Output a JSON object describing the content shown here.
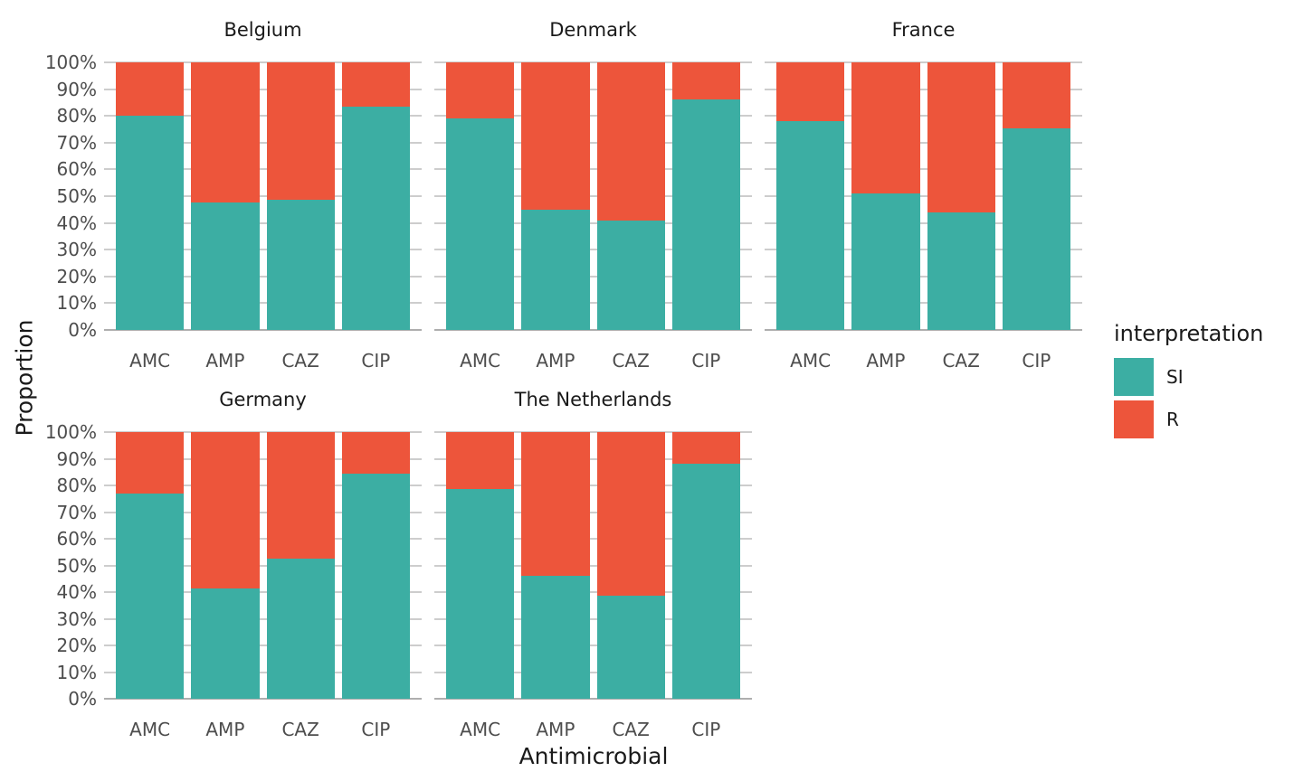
{
  "chart_data": {
    "type": "bar",
    "stacking": "percent",
    "title": "",
    "xlabel": "Antimicrobial",
    "ylabel": "Proportion",
    "ylim": [
      0,
      100
    ],
    "y_ticks": [
      "100%",
      "90%",
      "80%",
      "70%",
      "60%",
      "50%",
      "40%",
      "30%",
      "20%",
      "10%",
      "0%"
    ],
    "grid": "horizontal-only",
    "categories": [
      "AMC",
      "AMP",
      "CAZ",
      "CIP"
    ],
    "series": [
      {
        "name": "SI",
        "color": "#3CAEA3"
      },
      {
        "name": "R",
        "color": "#ED553B"
      }
    ],
    "legend": {
      "title": "interpretation",
      "position": "right",
      "items": [
        {
          "label": "SI",
          "color": "#3CAEA3"
        },
        {
          "label": "R",
          "color": "#ED553B"
        }
      ]
    },
    "facets": [
      {
        "title": "Belgium",
        "row": 0,
        "col": 0,
        "SI": [
          80,
          47.5,
          48.5,
          83.5
        ],
        "R": [
          20,
          52.5,
          51.5,
          16.5
        ]
      },
      {
        "title": "Denmark",
        "row": 0,
        "col": 1,
        "SI": [
          79,
          45,
          41,
          86
        ],
        "R": [
          21,
          55,
          59,
          14
        ]
      },
      {
        "title": "France",
        "row": 0,
        "col": 2,
        "SI": [
          78,
          51,
          44,
          75.5
        ],
        "R": [
          22,
          49,
          56,
          24.5
        ]
      },
      {
        "title": "Germany",
        "row": 1,
        "col": 0,
        "SI": [
          77,
          41.5,
          52.5,
          84.5
        ],
        "R": [
          23,
          58.5,
          47.5,
          15.5
        ]
      },
      {
        "title": "The Netherlands",
        "row": 1,
        "col": 1,
        "SI": [
          78.5,
          46,
          38.5,
          88
        ],
        "R": [
          21.5,
          54,
          61.5,
          12
        ]
      }
    ]
  }
}
